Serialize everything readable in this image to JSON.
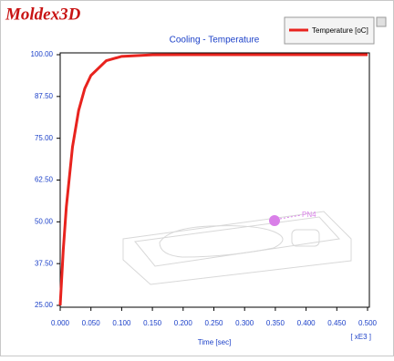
{
  "chart_data": {
    "type": "line",
    "logo": "Moldex3D",
    "title": "Cooling - Temperature",
    "x_label": "Time [sec]",
    "x_scale_note": "[ xE3 ]",
    "annotation": "PN4",
    "x": [
      0,
      0.005,
      0.01,
      0.02,
      0.03,
      0.04,
      0.05,
      0.075,
      0.1,
      0.15,
      0.2,
      0.3,
      0.4,
      0.5
    ],
    "series": [
      {
        "name": "Temperature [oC]",
        "color": "#e8231e",
        "values": [
          25,
          41.6,
          54.5,
          72.4,
          83.3,
          89.9,
          93.8,
          98.2,
          99.5,
          99.96,
          100,
          100,
          100,
          100
        ]
      }
    ],
    "xlim": [
      0,
      0.5
    ],
    "ylim": [
      25,
      100
    ],
    "xticks": [
      {
        "value": 0,
        "label": "0.000"
      },
      {
        "value": 0.05,
        "label": "0.050"
      },
      {
        "value": 0.1,
        "label": "0.100"
      },
      {
        "value": 0.15,
        "label": "0.150"
      },
      {
        "value": 0.2,
        "label": "0.200"
      },
      {
        "value": 0.25,
        "label": "0.250"
      },
      {
        "value": 0.3,
        "label": "0.300"
      },
      {
        "value": 0.35,
        "label": "0.350"
      },
      {
        "value": 0.4,
        "label": "0.400"
      },
      {
        "value": 0.45,
        "label": "0.450"
      },
      {
        "value": 0.5,
        "label": "0.500"
      }
    ],
    "yticks": [
      {
        "value": 25,
        "label": "25.00"
      },
      {
        "value": 37.5,
        "label": "37.50"
      },
      {
        "value": 50,
        "label": "50.00"
      },
      {
        "value": 62.5,
        "label": "62.50"
      },
      {
        "value": 75,
        "label": "75.00"
      },
      {
        "value": 87.5,
        "label": "87.50"
      },
      {
        "value": 100,
        "label": "100.00"
      }
    ],
    "grid": false
  }
}
